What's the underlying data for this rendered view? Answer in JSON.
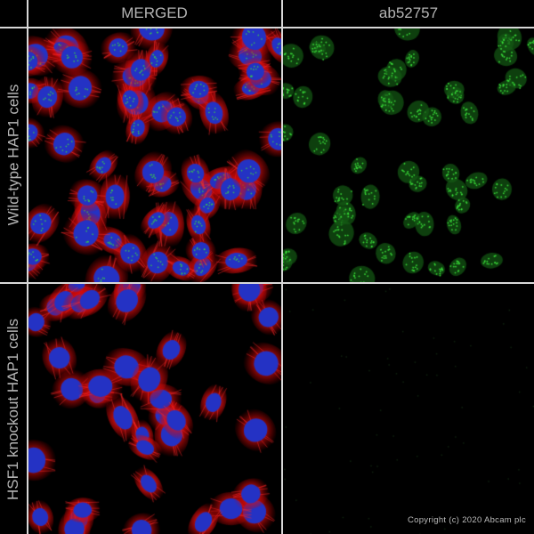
{
  "figure": {
    "columns": [
      {
        "label": "MERGED"
      },
      {
        "label": "ab52757"
      }
    ],
    "rows": [
      {
        "label": "Wild-type HAP1 cells"
      },
      {
        "label": "HSF1 knockout HAP1 cells"
      }
    ],
    "copyright": "Copyright (c) 2020 Abcam plc",
    "colors": {
      "background": "#000000",
      "grid_lines": "#d8d8d8",
      "label_text": "#b4b4b4",
      "cytoskeleton": "#e01010",
      "nucleus": "#2030c8",
      "target_signal": "#20c020"
    }
  }
}
